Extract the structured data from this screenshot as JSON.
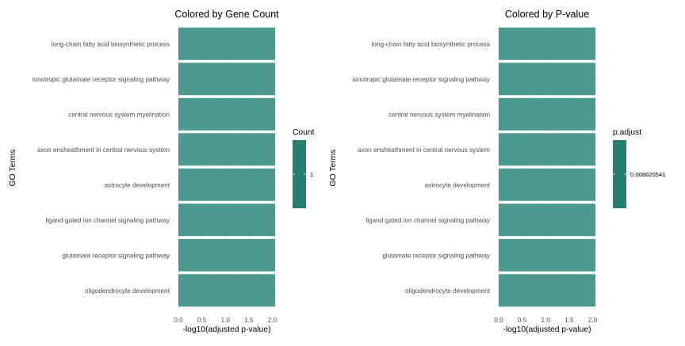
{
  "chart_data": [
    {
      "type": "bar",
      "orientation": "horizontal",
      "title": "Colored by Gene Count",
      "xlabel": "-log10(adjusted p-value)",
      "ylabel": "GO Terms",
      "categories": [
        "long-chain fatty acid biosynthetic process",
        "ionotropic glutamate receptor signaling pathway",
        "central nervous system myelination",
        "axon ensheathment in central nervous system",
        "astrocyte development",
        "ligand-gated ion channel signaling pathway",
        "glutamate receptor signaling pathway",
        "oligodendrocyte development"
      ],
      "values": [
        2.06,
        2.06,
        2.06,
        2.06,
        2.06,
        2.06,
        2.06,
        2.06
      ],
      "xlim": [
        0,
        2.06
      ],
      "xticks": [
        "0.0",
        "0.5",
        "1.0",
        "1.5",
        "2.0"
      ],
      "grid": true,
      "bar_color": "#4c9a8f",
      "legend": {
        "title": "Count",
        "label": "1",
        "color": "#267d71",
        "placement": "right"
      }
    },
    {
      "type": "bar",
      "orientation": "horizontal",
      "title": "Colored by P-value",
      "xlabel": "-log10(adjusted p-value)",
      "ylabel": "GO Terms",
      "categories": [
        "long-chain fatty acid biosynthetic process",
        "ionotropic glutamate receptor signaling pathway",
        "central nervous system myelination",
        "axon ensheathment in central nervous system",
        "astrocyte development",
        "ligand-gated ion channel signaling pathway",
        "glutamate receptor signaling pathway",
        "oligodendrocyte development"
      ],
      "values": [
        2.06,
        2.06,
        2.06,
        2.06,
        2.06,
        2.06,
        2.06,
        2.06
      ],
      "xlim": [
        0,
        2.06
      ],
      "xticks": [
        "0.0",
        "0.5",
        "1.0",
        "1.5",
        "2.0"
      ],
      "grid": true,
      "bar_color": "#4c9a8f",
      "legend": {
        "title": "p.adjust",
        "label": "0.008620541",
        "color": "#267d71",
        "placement": "right"
      }
    }
  ]
}
